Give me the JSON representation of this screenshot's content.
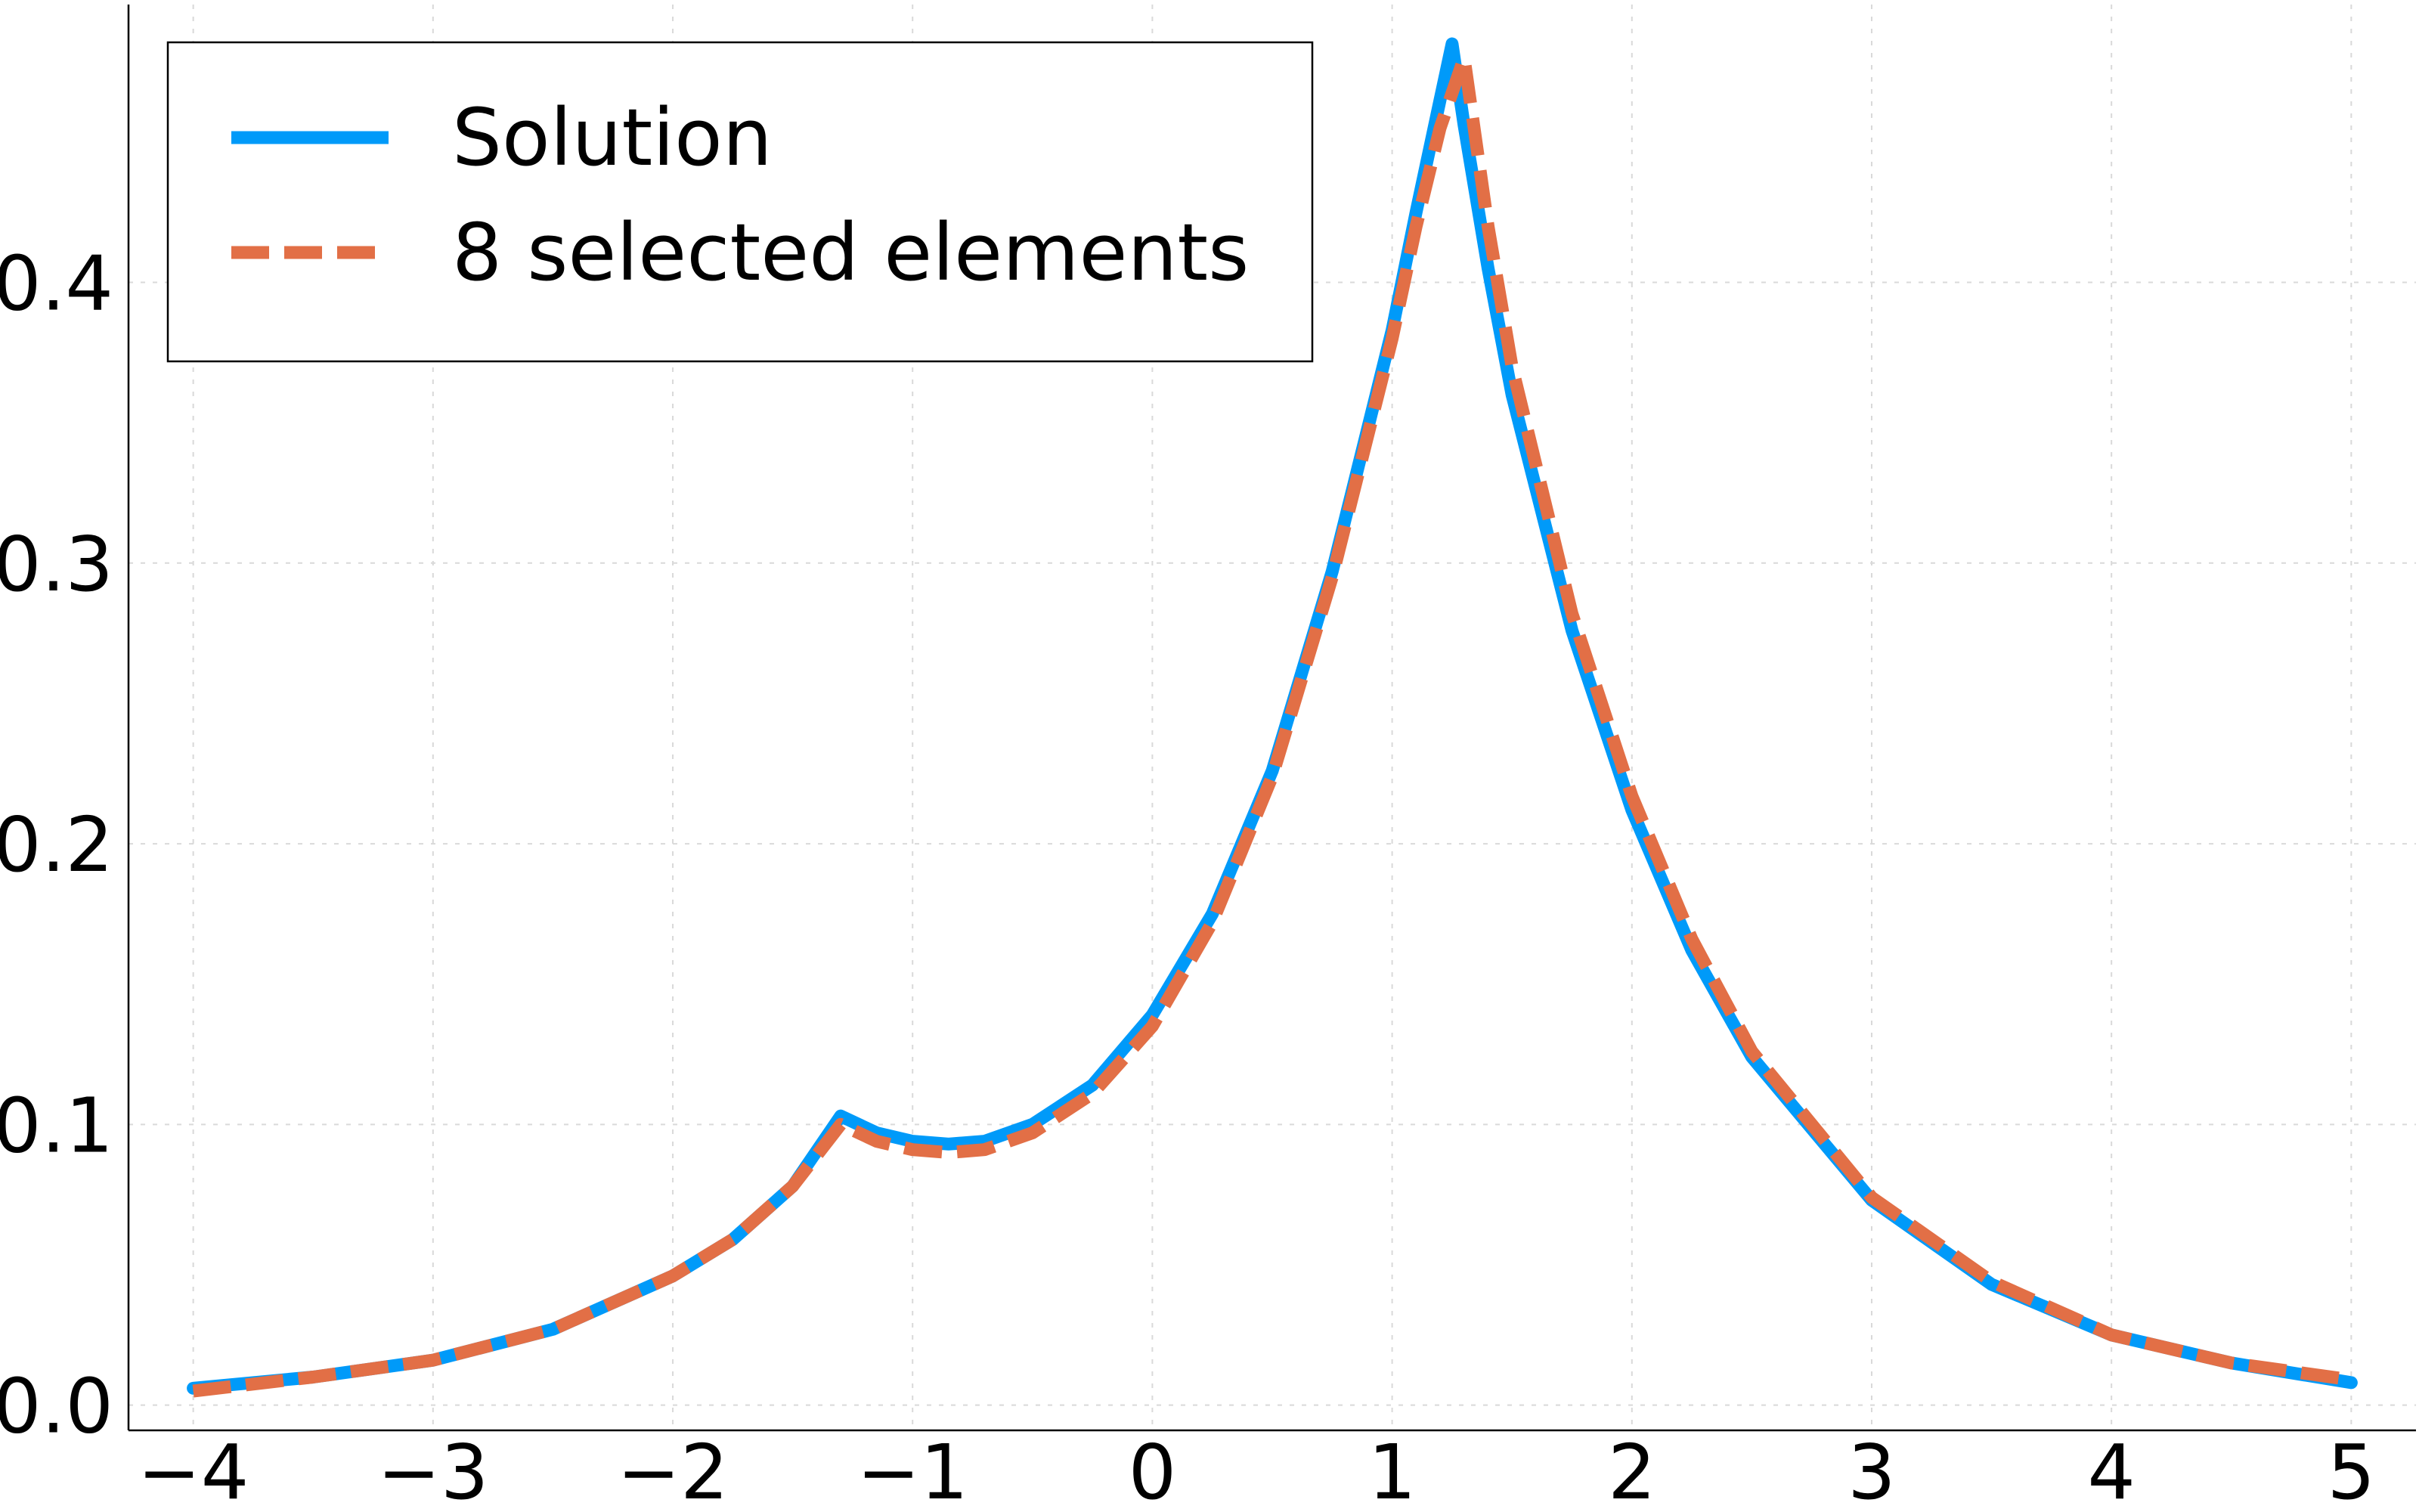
{
  "chart_data": {
    "type": "line",
    "title": "",
    "xlabel": "",
    "ylabel": "",
    "xlim": [
      -4.27,
      5.27
    ],
    "ylim": [
      -0.009,
      0.499
    ],
    "grid": true,
    "legend_position": "top-left",
    "x_ticks": [
      {
        "value": -4,
        "label": "−4"
      },
      {
        "value": -3,
        "label": "−3"
      },
      {
        "value": -2,
        "label": "−2"
      },
      {
        "value": -1,
        "label": "−1"
      },
      {
        "value": 0,
        "label": "0"
      },
      {
        "value": 1,
        "label": "1"
      },
      {
        "value": 2,
        "label": "2"
      },
      {
        "value": 3,
        "label": "3"
      },
      {
        "value": 4,
        "label": "4"
      },
      {
        "value": 5,
        "label": "5"
      }
    ],
    "y_ticks": [
      {
        "value": 0.0,
        "label": "0.0"
      },
      {
        "value": 0.1,
        "label": "0.1"
      },
      {
        "value": 0.2,
        "label": "0.2"
      },
      {
        "value": 0.3,
        "label": "0.3"
      },
      {
        "value": 0.4,
        "label": "0.4"
      }
    ],
    "series": [
      {
        "name": "Solution",
        "color": "#009af9",
        "style": "solid",
        "x": [
          -4.0,
          -3.5,
          -3.0,
          -2.5,
          -2.0,
          -1.75,
          -1.5,
          -1.3,
          -1.15,
          -1.0,
          -0.85,
          -0.7,
          -0.5,
          -0.25,
          0.0,
          0.25,
          0.5,
          0.75,
          1.0,
          1.1,
          1.2,
          1.25,
          1.3,
          1.4,
          1.5,
          1.75,
          2.0,
          2.25,
          2.5,
          3.0,
          3.5,
          4.0,
          4.5,
          5.0
        ],
        "y": [
          0.006,
          0.01,
          0.016,
          0.027,
          0.046,
          0.059,
          0.078,
          0.103,
          0.097,
          0.094,
          0.093,
          0.094,
          0.1,
          0.114,
          0.139,
          0.175,
          0.226,
          0.297,
          0.383,
          0.425,
          0.465,
          0.485,
          0.456,
          0.405,
          0.36,
          0.276,
          0.212,
          0.162,
          0.124,
          0.073,
          0.043,
          0.025,
          0.015,
          0.008
        ]
      },
      {
        "name": "8 selected elements",
        "color": "#e26f46",
        "style": "dashed",
        "x": [
          -4.0,
          -3.5,
          -3.0,
          -2.5,
          -2.0,
          -1.75,
          -1.5,
          -1.3,
          -1.15,
          -1.0,
          -0.85,
          -0.7,
          -0.5,
          -0.25,
          0.0,
          0.25,
          0.5,
          0.75,
          1.0,
          1.1,
          1.2,
          1.3,
          1.4,
          1.5,
          1.75,
          2.0,
          2.25,
          2.5,
          3.0,
          3.5,
          4.0,
          4.5,
          5.0
        ],
        "y": [
          0.005,
          0.01,
          0.016,
          0.027,
          0.046,
          0.059,
          0.078,
          0.1,
          0.094,
          0.091,
          0.09,
          0.091,
          0.097,
          0.111,
          0.135,
          0.172,
          0.224,
          0.295,
          0.38,
          0.42,
          0.455,
          0.48,
          0.42,
          0.37,
          0.282,
          0.217,
          0.166,
          0.126,
          0.074,
          0.044,
          0.025,
          0.015,
          0.009
        ]
      }
    ]
  }
}
